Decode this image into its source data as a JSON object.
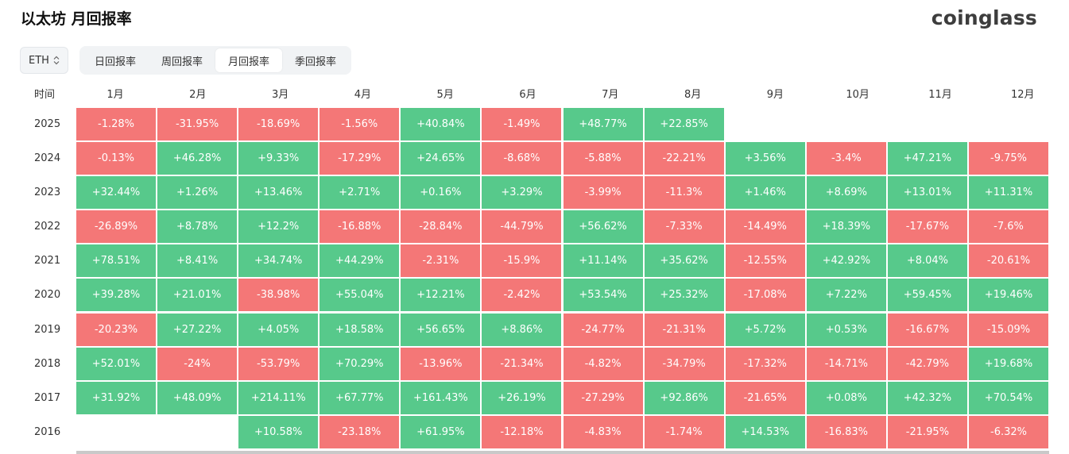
{
  "header": {
    "title": "以太坊 月回报率",
    "brand": "coinglass"
  },
  "toolbar": {
    "asset_value": "ETH",
    "tabs": [
      {
        "label": "日回报率",
        "active": false
      },
      {
        "label": "周回报率",
        "active": false
      },
      {
        "label": "月回报率",
        "active": true
      },
      {
        "label": "季回报率",
        "active": false
      }
    ]
  },
  "colors": {
    "positive": "#57c98b",
    "negative": "#f47777"
  },
  "table": {
    "time_header": "时间",
    "months": [
      "1月",
      "2月",
      "3月",
      "4月",
      "5月",
      "6月",
      "7月",
      "8月",
      "9月",
      "10月",
      "11月",
      "12月"
    ],
    "rows": [
      {
        "year": "2025",
        "values": [
          "-1.28%",
          "-31.95%",
          "-18.69%",
          "-1.56%",
          "+40.84%",
          "-1.49%",
          "+48.77%",
          "+22.85%",
          "",
          "",
          "",
          ""
        ]
      },
      {
        "year": "2024",
        "values": [
          "-0.13%",
          "+46.28%",
          "+9.33%",
          "-17.29%",
          "+24.65%",
          "-8.68%",
          "-5.88%",
          "-22.21%",
          "+3.56%",
          "-3.4%",
          "+47.21%",
          "-9.75%"
        ]
      },
      {
        "year": "2023",
        "values": [
          "+32.44%",
          "+1.26%",
          "+13.46%",
          "+2.71%",
          "+0.16%",
          "+3.29%",
          "-3.99%",
          "-11.3%",
          "+1.46%",
          "+8.69%",
          "+13.01%",
          "+11.31%"
        ]
      },
      {
        "year": "2022",
        "values": [
          "-26.89%",
          "+8.78%",
          "+12.2%",
          "-16.88%",
          "-28.84%",
          "-44.79%",
          "+56.62%",
          "-7.33%",
          "-14.49%",
          "+18.39%",
          "-17.67%",
          "-7.6%"
        ]
      },
      {
        "year": "2021",
        "values": [
          "+78.51%",
          "+8.41%",
          "+34.74%",
          "+44.29%",
          "-2.31%",
          "-15.9%",
          "+11.14%",
          "+35.62%",
          "-12.55%",
          "+42.92%",
          "+8.04%",
          "-20.61%"
        ]
      },
      {
        "year": "2020",
        "values": [
          "+39.28%",
          "+21.01%",
          "-38.98%",
          "+55.04%",
          "+12.21%",
          "-2.42%",
          "+53.54%",
          "+25.32%",
          "-17.08%",
          "+7.22%",
          "+59.45%",
          "+19.46%"
        ]
      },
      {
        "year": "2019",
        "values": [
          "-20.23%",
          "+27.22%",
          "+4.05%",
          "+18.58%",
          "+56.65%",
          "+8.86%",
          "-24.77%",
          "-21.31%",
          "+5.72%",
          "+0.53%",
          "-16.67%",
          "-15.09%"
        ]
      },
      {
        "year": "2018",
        "values": [
          "+52.01%",
          "-24%",
          "-53.79%",
          "+70.29%",
          "-13.96%",
          "-21.34%",
          "-4.82%",
          "-34.79%",
          "-17.32%",
          "-14.71%",
          "-42.79%",
          "+19.68%"
        ]
      },
      {
        "year": "2017",
        "values": [
          "+31.92%",
          "+48.09%",
          "+214.11%",
          "+67.77%",
          "+161.43%",
          "+26.19%",
          "-27.29%",
          "+92.86%",
          "-21.65%",
          "+0.08%",
          "+42.32%",
          "+70.54%"
        ]
      },
      {
        "year": "2016",
        "values": [
          "",
          "",
          "+10.58%",
          "-23.18%",
          "+61.95%",
          "-12.18%",
          "-4.83%",
          "-1.74%",
          "+14.53%",
          "-16.83%",
          "-21.95%",
          "-6.32%"
        ]
      }
    ]
  }
}
